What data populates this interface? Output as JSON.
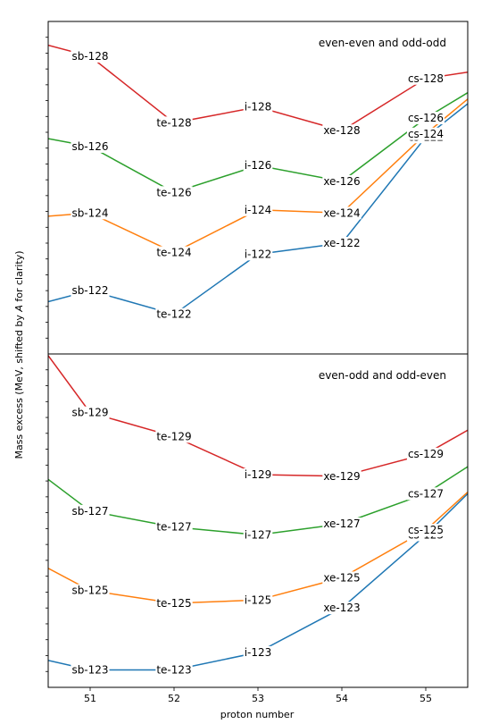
{
  "ylabel_before": "Mass excess (MeV, shifted by ",
  "ylabel_italic": "A",
  "ylabel_after": " for clarity)",
  "xlabel": "proton number",
  "colors": {
    "blue": "#1f77b4",
    "orange": "#ff7f0e",
    "green": "#2ca02c",
    "red": "#d62728"
  },
  "chart_data": [
    {
      "type": "line",
      "title": "even-even and odd-odd",
      "x": [
        50.5,
        51,
        52,
        53,
        54,
        55,
        55.5
      ],
      "xlim": [
        50.5,
        55.5
      ],
      "xticks": [
        51,
        52,
        53,
        54,
        55
      ],
      "ylim": [
        0,
        21
      ],
      "grid": false,
      "series": [
        {
          "color": "#1f77b4",
          "values": [
            3.3,
            4.0,
            2.5,
            6.3,
            7.0,
            13.7,
            15.8
          ],
          "labels": [
            "",
            "sb-122",
            "te-122",
            "i-122",
            "xe-122",
            "cs-122",
            ""
          ]
        },
        {
          "color": "#ff7f0e",
          "values": [
            8.7,
            8.9,
            6.4,
            9.1,
            8.9,
            13.9,
            16.1
          ],
          "labels": [
            "",
            "sb-124",
            "te-124",
            "i-124",
            "xe-124",
            "cs-124",
            ""
          ]
        },
        {
          "color": "#2ca02c",
          "values": [
            13.6,
            13.1,
            10.2,
            11.9,
            10.9,
            14.9,
            16.5
          ],
          "labels": [
            "",
            "sb-126",
            "te-126",
            "i-126",
            "xe-126",
            "cs-126",
            ""
          ]
        },
        {
          "color": "#d62728",
          "values": [
            19.5,
            18.8,
            14.6,
            15.6,
            14.1,
            17.4,
            17.8
          ],
          "labels": [
            "",
            "sb-128",
            "te-128",
            "i-128",
            "xe-128",
            "cs-128",
            ""
          ]
        }
      ]
    },
    {
      "type": "line",
      "title": "even-odd and odd-even",
      "x": [
        50.5,
        51,
        52,
        53,
        54,
        55,
        55.5
      ],
      "xlim": [
        50.5,
        55.5
      ],
      "xticks": [
        51,
        52,
        53,
        54,
        55
      ],
      "ylim": [
        0,
        21
      ],
      "grid": false,
      "series": [
        {
          "color": "#1f77b4",
          "values": [
            1.7,
            1.1,
            1.1,
            2.2,
            5.0,
            9.6,
            12.2
          ],
          "labels": [
            "",
            "sb-123",
            "te-123",
            "i-123",
            "xe-123",
            "cs-123",
            ""
          ]
        },
        {
          "color": "#ff7f0e",
          "values": [
            7.5,
            6.1,
            5.3,
            5.5,
            6.9,
            9.9,
            12.3
          ],
          "labels": [
            "",
            "sb-125",
            "te-125",
            "i-125",
            "xe-125",
            "cs-125",
            ""
          ]
        },
        {
          "color": "#2ca02c",
          "values": [
            13.1,
            11.1,
            10.1,
            9.6,
            10.3,
            12.2,
            13.9
          ],
          "labels": [
            "",
            "sb-127",
            "te-127",
            "i-127",
            "xe-127",
            "cs-127",
            ""
          ]
        },
        {
          "color": "#d62728",
          "values": [
            20.9,
            17.3,
            15.8,
            13.4,
            13.3,
            14.7,
            16.2
          ],
          "labels": [
            "",
            "sb-129",
            "te-129",
            "i-129",
            "xe-129",
            "cs-129",
            ""
          ]
        }
      ]
    }
  ]
}
